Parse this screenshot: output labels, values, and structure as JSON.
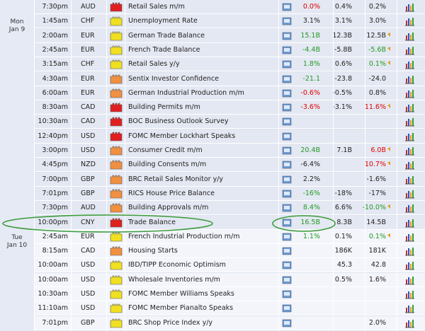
{
  "calendar": {
    "rows": [
      {
        "time": "7:30pm",
        "currency": "AUD",
        "impact_color": "#e02020",
        "event": "Retail Sales m/m",
        "actual": "0.0%",
        "actual_color": "#e00000",
        "forecast": "0.4%",
        "previous": "0.2%"
      },
      {
        "day": "Mon",
        "date": "Jan 9",
        "time": "1:45am",
        "currency": "CHF",
        "impact_color": "#f0e020",
        "event": "Unemployment Rate",
        "actual": "3.1%",
        "forecast": "3.1%",
        "previous": "3.0%"
      },
      {
        "time": "2:00am",
        "currency": "EUR",
        "impact_color": "#f0e020",
        "event": "German Trade Balance",
        "actual": "15.1B",
        "actual_color": "#229922",
        "forecast": "12.3B",
        "previous": "12.5B",
        "previous_revised": true
      },
      {
        "time": "2:45am",
        "currency": "EUR",
        "impact_color": "#f0e020",
        "event": "French Trade Balance",
        "actual": "-4.4B",
        "actual_color": "#229922",
        "forecast": "-5.8B",
        "previous": "-5.6B",
        "previous_color": "#229922",
        "previous_revised": true
      },
      {
        "time": "3:15am",
        "currency": "CHF",
        "impact_color": "#f0e020",
        "event": "Retail Sales y/y",
        "actual": "1.8%",
        "actual_color": "#229922",
        "forecast": "0.6%",
        "previous": "0.1%",
        "previous_color": "#229922",
        "previous_revised": true
      },
      {
        "time": "4:30am",
        "currency": "EUR",
        "impact_color": "#f09040",
        "event": "Sentix Investor Confidence",
        "actual": "-21.1",
        "actual_color": "#229922",
        "forecast": "-23.8",
        "previous": "-24.0"
      },
      {
        "time": "6:00am",
        "currency": "EUR",
        "impact_color": "#f09040",
        "event": "German Industrial Production m/m",
        "actual": "-0.6%",
        "actual_color": "#e00000",
        "forecast": "-0.5%",
        "previous": "0.8%"
      },
      {
        "time": "8:30am",
        "currency": "CAD",
        "impact_color": "#e02020",
        "event": "Building Permits m/m",
        "actual": "-3.6%",
        "actual_color": "#e00000",
        "forecast": "-3.1%",
        "previous": "11.6%",
        "previous_color": "#e00000",
        "previous_revised": true
      },
      {
        "time": "10:30am",
        "currency": "CAD",
        "impact_color": "#e02020",
        "event": "BOC Business Outlook Survey"
      },
      {
        "time": "12:40pm",
        "currency": "USD",
        "impact_color": "#e02020",
        "event": "FOMC Member Lockhart Speaks"
      },
      {
        "time": "3:00pm",
        "currency": "USD",
        "impact_color": "#f09040",
        "event": "Consumer Credit m/m",
        "actual": "20.4B",
        "actual_color": "#229922",
        "forecast": "7.1B",
        "previous": "6.0B",
        "previous_color": "#e00000",
        "previous_revised": true
      },
      {
        "time": "4:45pm",
        "currency": "NZD",
        "impact_color": "#f09040",
        "event": "Building Consents m/m",
        "actual": "-6.4%",
        "previous": "10.7%",
        "previous_color": "#e00000",
        "previous_revised": true
      },
      {
        "time": "7:00pm",
        "currency": "GBP",
        "impact_color": "#f09040",
        "event": "BRC Retail Sales Monitor y/y",
        "actual": "2.2%",
        "previous": "-1.6%"
      },
      {
        "time": "7:01pm",
        "currency": "GBP",
        "impact_color": "#f09040",
        "event": "RICS House Price Balance",
        "actual": "-16%",
        "actual_color": "#229922",
        "forecast": "-18%",
        "previous": "-17%"
      },
      {
        "time": "7:30pm",
        "currency": "AUD",
        "impact_color": "#f09040",
        "event": "Building Approvals m/m",
        "actual": "8.4%",
        "actual_color": "#229922",
        "forecast": "6.6%",
        "previous": "-10.0%",
        "previous_color": "#229922",
        "previous_revised": true
      },
      {
        "time": "10:00pm",
        "currency": "CNY",
        "impact_color": "#e02020",
        "event": "Trade Balance",
        "actual": "16.5B",
        "actual_color": "#229922",
        "forecast": "8.3B",
        "previous": "14.5B"
      },
      {
        "day": "Tue",
        "date": "Jan 10",
        "time": "2:45am",
        "currency": "EUR",
        "impact_color": "#f0e020",
        "event": "French Industrial Production m/m",
        "actual": "1.1%",
        "actual_color": "#229922",
        "forecast": "0.1%",
        "previous": "0.1%",
        "previous_color": "#229922",
        "previous_revised": true
      },
      {
        "time": "8:15am",
        "currency": "CAD",
        "impact_color": "#f09040",
        "event": "Housing Starts",
        "forecast": "186K",
        "previous": "181K"
      },
      {
        "time": "10:00am",
        "currency": "USD",
        "impact_color": "#f0e020",
        "event": "IBD/TIPP Economic Optimism",
        "forecast": "45.3",
        "previous": "42.8"
      },
      {
        "time": "10:00am",
        "currency": "USD",
        "impact_color": "#f0e020",
        "event": "Wholesale Inventories m/m",
        "forecast": "0.5%",
        "previous": "1.6%"
      },
      {
        "time": "10:30am",
        "currency": "USD",
        "impact_color": "#f0e020",
        "event": "FOMC Member Williams Speaks"
      },
      {
        "time": "11:10am",
        "currency": "USD",
        "impact_color": "#f0e020",
        "event": "FOMC Member Pianalto Speaks"
      },
      {
        "time": "7:01pm",
        "currency": "GBP",
        "impact_color": "#f0e020",
        "event": "BRC Shop Price Index y/y",
        "previous": "2.0%"
      }
    ]
  }
}
